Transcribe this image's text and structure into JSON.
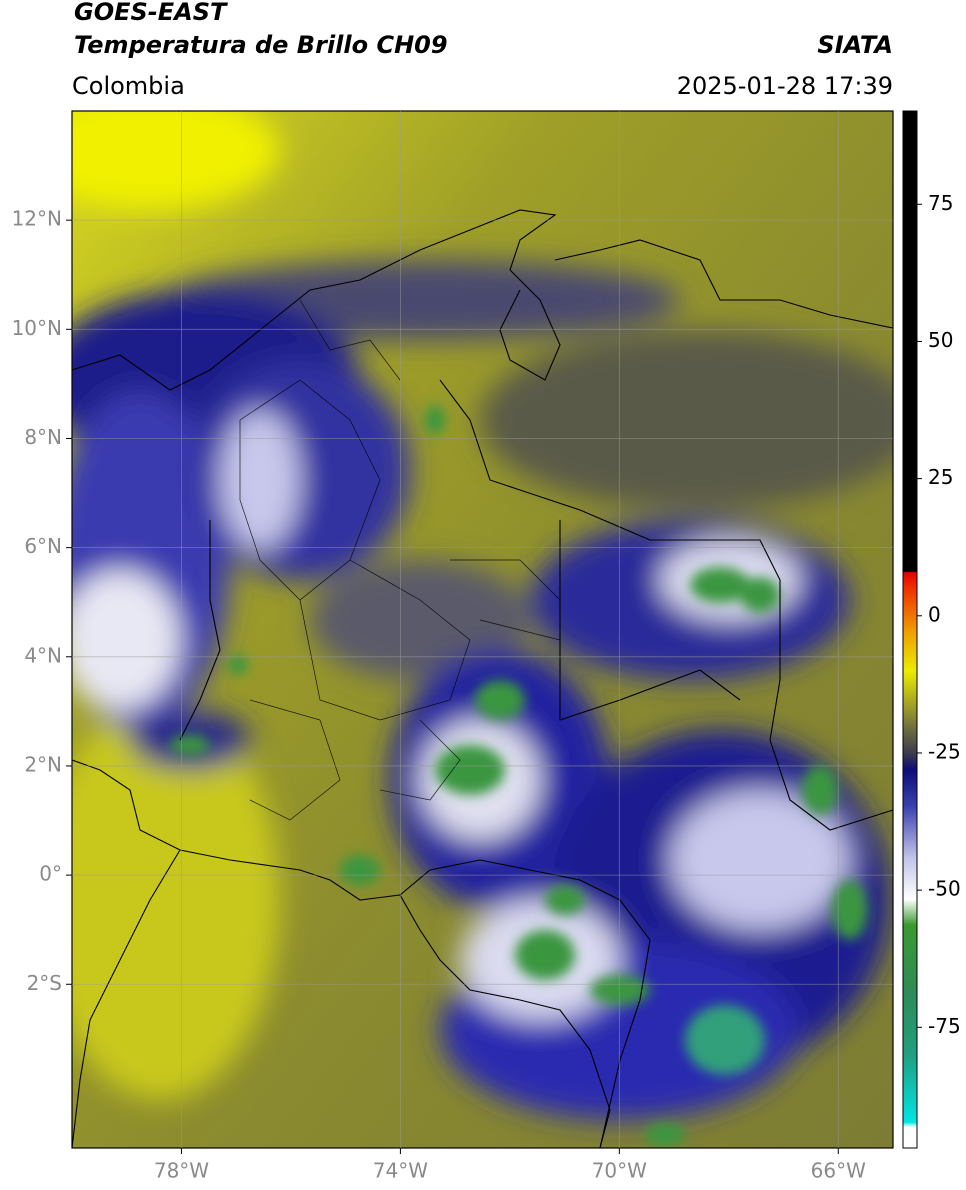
{
  "header": {
    "satellite": "GOES-EAST",
    "product": "Temperatura de Brillo CH09",
    "source": "SIATA",
    "region": "Colombia",
    "datetime": "2025-01-28 17:39"
  },
  "map": {
    "xlim": [
      -80,
      -65
    ],
    "ylim": [
      -5,
      14
    ],
    "lon_ticks": [
      {
        "value": -78,
        "label": "78°W"
      },
      {
        "value": -74,
        "label": "74°W"
      },
      {
        "value": -70,
        "label": "70°W"
      },
      {
        "value": -66,
        "label": "66°W"
      }
    ],
    "lat_ticks": [
      {
        "value": 12,
        "label": "12°N"
      },
      {
        "value": 10,
        "label": "10°N"
      },
      {
        "value": 8,
        "label": "8°N"
      },
      {
        "value": 6,
        "label": "6°N"
      },
      {
        "value": 4,
        "label": "4°N"
      },
      {
        "value": 2,
        "label": "2°N"
      },
      {
        "value": 0,
        "label": "0°"
      },
      {
        "value": -2,
        "label": "2°S"
      }
    ]
  },
  "colorbar": {
    "lim": [
      -97,
      92
    ],
    "ticks": [
      75,
      50,
      25,
      0,
      -25,
      -50,
      -75
    ]
  }
}
